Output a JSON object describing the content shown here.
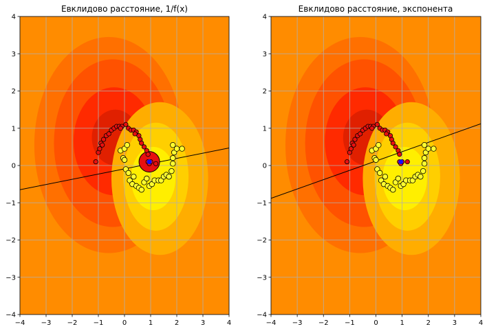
{
  "charts": [
    {
      "title": "Евклидово расстояние, 1/f(x)",
      "xticks": [
        "−4",
        "−3",
        "−2",
        "−1",
        "0",
        "1",
        "2",
        "3",
        "4"
      ],
      "yticks": [
        "−4",
        "−3",
        "−2",
        "−1",
        "0",
        "1",
        "2",
        "3",
        "4"
      ]
    },
    {
      "title": "Евклидово расстояние, экспонента",
      "xticks": [
        "−4",
        "−3",
        "−2",
        "−1",
        "0",
        "1",
        "2",
        "3",
        "4"
      ],
      "yticks": [
        "−4",
        "−3",
        "−2",
        "−1",
        "0",
        "1",
        "2",
        "3",
        "4"
      ]
    }
  ],
  "chart_data": [
    {
      "type": "scatter",
      "title": "Евклидово расстояние, 1/f(x)",
      "xlim": [
        -4,
        4
      ],
      "ylim": [
        -4,
        4
      ],
      "grid": true,
      "background": "contourf",
      "colors": {
        "level_1": "#e02000",
        "level_2": "#ff2a00",
        "level_3": "#ff5200",
        "level_4": "#ff7000",
        "background": "#ff8c00",
        "level_6": "#ffad00",
        "level_7": "#ffcf00",
        "level_8": "#ffef00",
        "class_0": "#e81010",
        "class_1": "#ffff30",
        "point_edge": "#000000",
        "marker": "#1010ff"
      },
      "decision_line": {
        "x": [
          -4,
          4
        ],
        "y": [
          -0.65,
          0.47
        ]
      },
      "marker": {
        "x": 0.95,
        "y": 0.1
      },
      "class_0_points": [
        [
          -1.1,
          0.1
        ],
        [
          -1.0,
          0.35
        ],
        [
          -0.95,
          0.45
        ],
        [
          -0.9,
          0.6
        ],
        [
          -0.8,
          0.7
        ],
        [
          -0.7,
          0.8
        ],
        [
          -0.6,
          0.85
        ],
        [
          -0.5,
          0.95
        ],
        [
          -0.4,
          1.0
        ],
        [
          -0.3,
          1.05
        ],
        [
          -0.2,
          1.05
        ],
        [
          -0.1,
          1.05
        ],
        [
          0.05,
          1.1
        ],
        [
          0.15,
          1.0
        ],
        [
          0.25,
          0.95
        ],
        [
          0.35,
          0.95
        ],
        [
          0.45,
          0.9
        ],
        [
          0.55,
          0.8
        ],
        [
          0.6,
          0.7
        ],
        [
          0.65,
          0.6
        ],
        [
          0.75,
          0.5
        ],
        [
          0.85,
          0.4
        ],
        [
          0.9,
          0.3
        ],
        [
          0.9,
          0.1
        ],
        [
          0.95,
          0.05
        ],
        [
          1.0,
          0.1
        ],
        [
          1.2,
          0.05
        ],
        [
          -0.85,
          0.55
        ],
        [
          -0.15,
          1.0
        ],
        [
          0.4,
          0.85
        ]
      ],
      "class_1_points": [
        [
          -0.15,
          0.4
        ],
        [
          -0.05,
          0.2
        ],
        [
          0.0,
          0.15
        ],
        [
          0.0,
          0.45
        ],
        [
          0.1,
          0.55
        ],
        [
          0.05,
          -0.1
        ],
        [
          0.15,
          -0.2
        ],
        [
          0.2,
          -0.4
        ],
        [
          0.3,
          -0.5
        ],
        [
          0.35,
          -0.3
        ],
        [
          0.45,
          -0.55
        ],
        [
          0.55,
          -0.6
        ],
        [
          0.65,
          -0.65
        ],
        [
          0.75,
          -0.45
        ],
        [
          0.85,
          -0.35
        ],
        [
          0.95,
          -0.55
        ],
        [
          1.05,
          -0.5
        ],
        [
          1.15,
          -0.4
        ],
        [
          1.3,
          -0.4
        ],
        [
          1.4,
          -0.4
        ],
        [
          1.5,
          -0.3
        ],
        [
          1.6,
          -0.25
        ],
        [
          1.7,
          -0.3
        ],
        [
          1.8,
          -0.15
        ],
        [
          1.85,
          0.05
        ],
        [
          1.85,
          0.2
        ],
        [
          1.9,
          0.35
        ],
        [
          1.85,
          0.55
        ],
        [
          2.0,
          0.45
        ],
        [
          2.2,
          0.45
        ]
      ]
    },
    {
      "type": "scatter",
      "title": "Евклидово расстояние, экспонента",
      "xlim": [
        -4,
        4
      ],
      "ylim": [
        -4,
        4
      ],
      "grid": true,
      "background": "contourf",
      "colors": {
        "level_1": "#e02000",
        "level_2": "#ff2a00",
        "level_3": "#ff5200",
        "level_4": "#ff7000",
        "background": "#ff8c00",
        "level_6": "#ffad00",
        "level_7": "#ffcf00",
        "level_8": "#ffef00",
        "class_0": "#e81010",
        "class_1": "#ffff30",
        "point_edge": "#000000",
        "marker": "#1010ff"
      },
      "decision_line": {
        "x": [
          -4,
          4
        ],
        "y": [
          -0.88,
          1.12
        ]
      },
      "marker": {
        "x": 0.95,
        "y": 0.1
      },
      "class_0_points": [
        [
          -1.1,
          0.1
        ],
        [
          -1.0,
          0.35
        ],
        [
          -0.95,
          0.45
        ],
        [
          -0.9,
          0.6
        ],
        [
          -0.8,
          0.7
        ],
        [
          -0.7,
          0.8
        ],
        [
          -0.6,
          0.85
        ],
        [
          -0.5,
          0.95
        ],
        [
          -0.4,
          1.0
        ],
        [
          -0.3,
          1.05
        ],
        [
          -0.2,
          1.05
        ],
        [
          -0.1,
          1.05
        ],
        [
          0.05,
          1.1
        ],
        [
          0.15,
          1.0
        ],
        [
          0.25,
          0.95
        ],
        [
          0.35,
          0.95
        ],
        [
          0.45,
          0.9
        ],
        [
          0.55,
          0.8
        ],
        [
          0.6,
          0.7
        ],
        [
          0.65,
          0.6
        ],
        [
          0.75,
          0.5
        ],
        [
          0.85,
          0.4
        ],
        [
          0.9,
          0.3
        ],
        [
          0.9,
          0.1
        ],
        [
          0.95,
          0.05
        ],
        [
          1.0,
          0.1
        ],
        [
          1.2,
          0.1
        ],
        [
          -0.85,
          0.55
        ],
        [
          -0.15,
          1.0
        ],
        [
          0.4,
          0.85
        ]
      ],
      "class_1_points": [
        [
          -0.15,
          0.4
        ],
        [
          -0.05,
          0.2
        ],
        [
          0.0,
          0.15
        ],
        [
          0.0,
          0.45
        ],
        [
          0.1,
          0.55
        ],
        [
          0.05,
          -0.1
        ],
        [
          0.15,
          -0.2
        ],
        [
          0.2,
          -0.4
        ],
        [
          0.3,
          -0.5
        ],
        [
          0.35,
          -0.3
        ],
        [
          0.45,
          -0.55
        ],
        [
          0.55,
          -0.6
        ],
        [
          0.65,
          -0.65
        ],
        [
          0.75,
          -0.45
        ],
        [
          0.85,
          -0.35
        ],
        [
          0.95,
          -0.55
        ],
        [
          1.05,
          -0.5
        ],
        [
          1.15,
          -0.4
        ],
        [
          1.3,
          -0.4
        ],
        [
          1.4,
          -0.4
        ],
        [
          1.5,
          -0.3
        ],
        [
          1.6,
          -0.25
        ],
        [
          1.7,
          -0.3
        ],
        [
          1.8,
          -0.15
        ],
        [
          1.85,
          0.05
        ],
        [
          1.85,
          0.2
        ],
        [
          1.9,
          0.35
        ],
        [
          1.85,
          0.55
        ],
        [
          2.0,
          0.45
        ],
        [
          2.2,
          0.45
        ]
      ]
    }
  ]
}
